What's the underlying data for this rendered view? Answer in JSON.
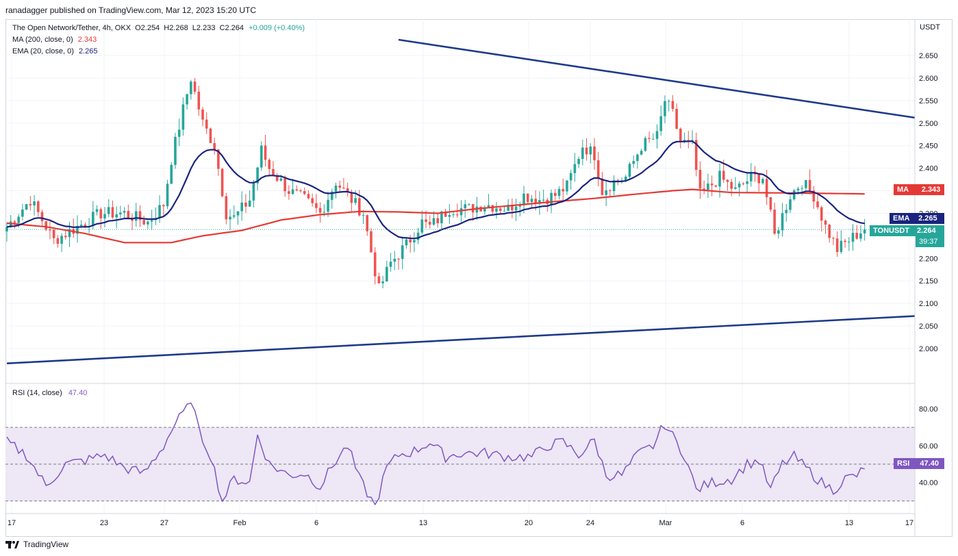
{
  "header": {
    "text": "ranadagger published on TradingView.com, Mar 12, 2023 15:20 UTC"
  },
  "legend": {
    "symbol": "The Open Network/Tether, 4h, OKX",
    "o": "O2.254",
    "h": "H2.268",
    "l": "L2.233",
    "c": "C2.264",
    "change": "+0.009 (+0.40%)",
    "ma_label": "MA (200, close, 0)",
    "ma_value": "2.343",
    "ema_label": "EMA (20, close, 0)",
    "ema_value": "2.265",
    "rsi_label": "RSI (14, close)",
    "rsi_value": "47.40"
  },
  "axis": {
    "unit": "USDT"
  },
  "tags": {
    "ma": {
      "label": "MA",
      "value": "2.343"
    },
    "ema": {
      "label": "EMA",
      "value": "2.265"
    },
    "price": {
      "label": "TONUSDT",
      "value": "2.264",
      "timer": "39:37"
    },
    "rsi": {
      "label": "RSI",
      "value": "47.40"
    }
  },
  "footer": {
    "brand": "TradingView"
  },
  "colors": {
    "up": "#26a69a",
    "down": "#ef5350",
    "ma": "#e53935",
    "ema": "#1a237e",
    "trend": "#1e3a8a",
    "rsi": "#7e57c2",
    "rsi_band": "#ede7f6",
    "grid": "#f0f3fa"
  },
  "chart_data": {
    "type": "candlestick",
    "price_axis": {
      "ticks": [
        "2.650",
        "2.600",
        "2.550",
        "2.500",
        "2.450",
        "2.400",
        "2.350",
        "2.300",
        "2.250",
        "2.200",
        "2.150",
        "2.100",
        "2.050",
        "2.000"
      ],
      "range": [
        1.965,
        2.685
      ]
    },
    "time_axis": {
      "labels": [
        "17",
        "23",
        "27",
        "Feb",
        "6",
        "13",
        "20",
        "24",
        "Mar",
        "6",
        "13",
        "17"
      ],
      "bars_total": 232
    },
    "rsi_axis": {
      "ticks": [
        "80.00",
        "60.00",
        "40.00"
      ],
      "range": [
        25,
        92
      ],
      "band": [
        30,
        70
      ]
    },
    "trendlines": [
      {
        "name": "descending resistance",
        "from": {
          "bar": 100,
          "price": 2.685
        },
        "to": {
          "bar": 232,
          "price": 2.512
        }
      },
      {
        "name": "ascending support",
        "from": {
          "bar": 0,
          "price": 1.967
        },
        "to": {
          "bar": 232,
          "price": 2.072
        }
      }
    ],
    "anchors": [
      [
        0,
        2.27
      ],
      [
        6,
        2.33
      ],
      [
        12,
        2.24
      ],
      [
        18,
        2.27
      ],
      [
        24,
        2.3
      ],
      [
        30,
        2.3
      ],
      [
        36,
        2.28
      ],
      [
        40,
        2.32
      ],
      [
        42,
        2.42
      ],
      [
        45,
        2.53
      ],
      [
        47,
        2.6
      ],
      [
        50,
        2.5
      ],
      [
        53,
        2.45
      ],
      [
        56,
        2.3
      ],
      [
        58,
        2.29
      ],
      [
        62,
        2.33
      ],
      [
        65,
        2.44
      ],
      [
        67,
        2.4
      ],
      [
        72,
        2.35
      ],
      [
        76,
        2.33
      ],
      [
        80,
        2.3
      ],
      [
        84,
        2.37
      ],
      [
        88,
        2.33
      ],
      [
        91,
        2.3
      ],
      [
        95,
        2.13
      ],
      [
        98,
        2.19
      ],
      [
        102,
        2.23
      ],
      [
        106,
        2.28
      ],
      [
        108,
        2.27
      ],
      [
        113,
        2.31
      ],
      [
        118,
        2.31
      ],
      [
        122,
        2.32
      ],
      [
        128,
        2.31
      ],
      [
        132,
        2.34
      ],
      [
        136,
        2.33
      ],
      [
        140,
        2.34
      ],
      [
        143,
        2.36
      ],
      [
        147,
        2.45
      ],
      [
        150,
        2.43
      ],
      [
        152,
        2.35
      ],
      [
        155,
        2.37
      ],
      [
        158,
        2.38
      ],
      [
        162,
        2.45
      ],
      [
        166,
        2.47
      ],
      [
        168,
        2.55
      ],
      [
        170,
        2.52
      ],
      [
        172,
        2.46
      ],
      [
        175,
        2.45
      ],
      [
        177,
        2.34
      ],
      [
        182,
        2.38
      ],
      [
        186,
        2.35
      ],
      [
        190,
        2.38
      ],
      [
        193,
        2.38
      ],
      [
        196,
        2.25
      ],
      [
        200,
        2.34
      ],
      [
        203,
        2.37
      ],
      [
        206,
        2.34
      ],
      [
        209,
        2.27
      ],
      [
        212,
        2.22
      ],
      [
        215,
        2.24
      ],
      [
        218,
        2.26
      ],
      [
        219,
        2.264
      ]
    ],
    "ma200": [
      [
        0,
        2.278
      ],
      [
        10,
        2.27
      ],
      [
        20,
        2.255
      ],
      [
        30,
        2.235
      ],
      [
        42,
        2.235
      ],
      [
        50,
        2.25
      ],
      [
        60,
        2.262
      ],
      [
        70,
        2.285
      ],
      [
        80,
        2.297
      ],
      [
        90,
        2.304
      ],
      [
        100,
        2.303
      ],
      [
        110,
        2.3
      ],
      [
        120,
        2.31
      ],
      [
        130,
        2.318
      ],
      [
        140,
        2.326
      ],
      [
        150,
        2.333
      ],
      [
        160,
        2.342
      ],
      [
        170,
        2.35
      ],
      [
        175,
        2.353
      ],
      [
        185,
        2.346
      ],
      [
        200,
        2.345
      ],
      [
        219,
        2.343
      ]
    ],
    "rsi": [
      [
        0,
        62
      ],
      [
        5,
        55
      ],
      [
        10,
        38
      ],
      [
        15,
        50
      ],
      [
        20,
        52
      ],
      [
        25,
        55
      ],
      [
        30,
        48
      ],
      [
        35,
        45
      ],
      [
        40,
        60
      ],
      [
        43,
        72
      ],
      [
        46,
        80
      ],
      [
        47,
        86
      ],
      [
        49,
        68
      ],
      [
        52,
        55
      ],
      [
        55,
        30
      ],
      [
        58,
        42
      ],
      [
        62,
        40
      ],
      [
        64,
        66
      ],
      [
        67,
        50
      ],
      [
        72,
        44
      ],
      [
        76,
        45
      ],
      [
        80,
        38
      ],
      [
        84,
        52
      ],
      [
        87,
        60
      ],
      [
        90,
        42
      ],
      [
        94,
        27
      ],
      [
        97,
        48
      ],
      [
        100,
        55
      ],
      [
        104,
        57
      ],
      [
        108,
        62
      ],
      [
        112,
        54
      ],
      [
        116,
        56
      ],
      [
        122,
        56
      ],
      [
        128,
        54
      ],
      [
        134,
        54
      ],
      [
        138,
        60
      ],
      [
        142,
        62
      ],
      [
        146,
        55
      ],
      [
        150,
        63
      ],
      [
        153,
        44
      ],
      [
        157,
        44
      ],
      [
        161,
        55
      ],
      [
        165,
        60
      ],
      [
        168,
        72
      ],
      [
        170,
        65
      ],
      [
        173,
        55
      ],
      [
        176,
        36
      ],
      [
        180,
        40
      ],
      [
        185,
        42
      ],
      [
        189,
        50
      ],
      [
        192,
        52
      ],
      [
        195,
        36
      ],
      [
        198,
        50
      ],
      [
        201,
        54
      ],
      [
        204,
        48
      ],
      [
        208,
        40
      ],
      [
        211,
        36
      ],
      [
        214,
        42
      ],
      [
        217,
        44
      ],
      [
        219,
        47.4
      ]
    ],
    "series": [
      {
        "name": "TONUSDT 4h",
        "last": 2.264
      },
      {
        "name": "MA (200, close, 0)",
        "last": 2.343
      },
      {
        "name": "EMA (20, close, 0)",
        "last": 2.265
      },
      {
        "name": "RSI (14, close)",
        "last": 47.4
      }
    ],
    "grid": true
  }
}
